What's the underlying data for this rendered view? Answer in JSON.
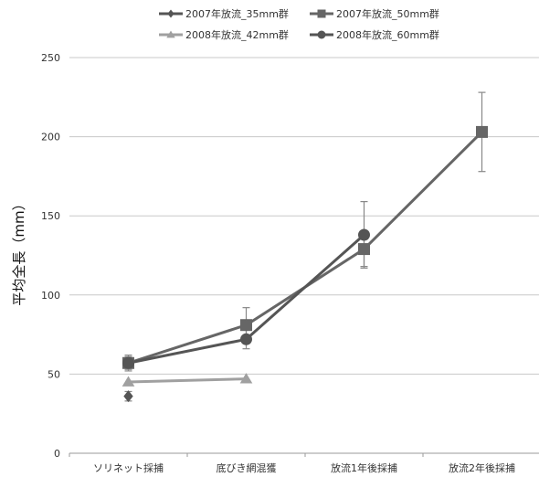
{
  "chart_data": {
    "type": "line",
    "title": "",
    "ylabel": "平均全長（mm）",
    "xlabel": "",
    "categories": [
      "ソリネット採捕",
      "底びき網混獲",
      "放流1年後採捕",
      "放流2年後採捕"
    ],
    "ylim": [
      0,
      250
    ],
    "yticks": [
      0,
      50,
      100,
      150,
      200,
      250
    ],
    "grid": true,
    "legend_position": "top",
    "series": [
      {
        "name": "2007年放流_35mm群",
        "marker": "diamond",
        "color": "#555555",
        "values": [
          36,
          null,
          null,
          null
        ],
        "err": [
          3,
          null,
          null,
          null
        ]
      },
      {
        "name": "2007年放流_50mm群",
        "marker": "square",
        "color": "#666666",
        "values": [
          57,
          81,
          129,
          203
        ],
        "err": [
          4,
          11,
          11,
          25
        ]
      },
      {
        "name": "2008年放流_42mm群",
        "marker": "triangle",
        "color": "#a0a0a0",
        "values": [
          45,
          47,
          null,
          null
        ],
        "err": [
          null,
          null,
          null,
          null
        ]
      },
      {
        "name": "2008年放流_60mm群",
        "marker": "circle",
        "color": "#555555",
        "values": [
          57,
          72,
          138,
          null
        ],
        "err": [
          5,
          6,
          21,
          null
        ]
      }
    ]
  }
}
